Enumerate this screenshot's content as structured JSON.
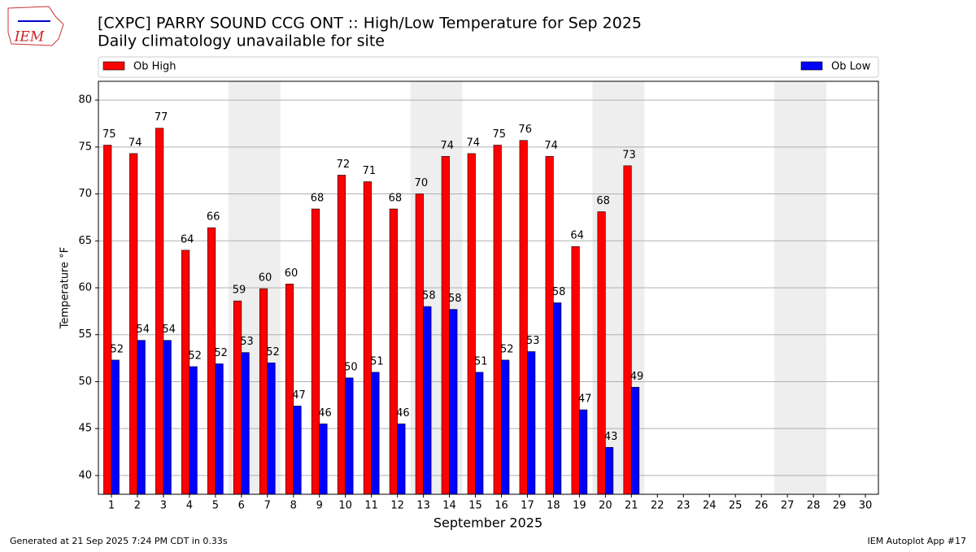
{
  "logo_text": "IEM",
  "chart_data": {
    "type": "bar",
    "title": "[CXPC] PARRY SOUND CCG  ONT :: High/Low Temperature for Sep 2025",
    "subtitle": "Daily climatology unavailable for site",
    "x_label": "September 2025",
    "y_label": "Temperature °F",
    "categories": [
      "1",
      "2",
      "3",
      "4",
      "5",
      "6",
      "7",
      "8",
      "9",
      "10",
      "11",
      "12",
      "13",
      "14",
      "15",
      "16",
      "17",
      "18",
      "19",
      "20",
      "21",
      "22",
      "23",
      "24",
      "25",
      "26",
      "27",
      "28",
      "29",
      "30"
    ],
    "series": [
      {
        "name": "Ob High",
        "color": "#ff0000",
        "values": [
          75.2,
          74.3,
          77.0,
          64.0,
          66.4,
          58.6,
          59.9,
          60.4,
          68.4,
          72.0,
          71.3,
          68.4,
          70.0,
          74.0,
          74.3,
          75.2,
          75.7,
          74.0,
          64.4,
          68.1,
          73.0,
          null,
          null,
          null,
          null,
          null,
          null,
          null,
          null,
          null
        ],
        "value_labels": [
          "75",
          "74",
          "77",
          "64",
          "66",
          "59",
          "60",
          "60",
          "68",
          "72",
          "71",
          "68",
          "70",
          "74",
          "74",
          "75",
          "76",
          "74",
          "64",
          "68",
          "73",
          null,
          null,
          null,
          null,
          null,
          null,
          null,
          null,
          null
        ]
      },
      {
        "name": "Ob Low",
        "color": "#0000ff",
        "values": [
          52.3,
          54.4,
          54.4,
          51.6,
          51.9,
          53.1,
          52.0,
          47.4,
          45.5,
          50.4,
          51.0,
          45.5,
          58.0,
          57.7,
          51.0,
          52.3,
          53.2,
          58.4,
          47.0,
          43.0,
          49.4,
          null,
          null,
          null,
          null,
          null,
          null,
          null,
          null,
          null
        ],
        "value_labels": [
          "52",
          "54",
          "54",
          "52",
          "52",
          "53",
          "52",
          "47",
          "46",
          "50",
          "51",
          "46",
          "58",
          "58",
          "51",
          "52",
          "53",
          "58",
          "47",
          "43",
          "49",
          null,
          null,
          null,
          null,
          null,
          null,
          null,
          null,
          null
        ]
      }
    ],
    "shaded_categories": [
      "6",
      "7",
      "13",
      "14",
      "20",
      "21",
      "27",
      "28"
    ],
    "ylim": [
      38,
      82
    ],
    "yticks": [
      40,
      45,
      50,
      55,
      60,
      65,
      70,
      75,
      80
    ],
    "grid": true,
    "footer_left": "Generated at 21 Sep 2025 7:24 PM CDT in 0.33s",
    "footer_right": "IEM Autoplot App #17"
  }
}
